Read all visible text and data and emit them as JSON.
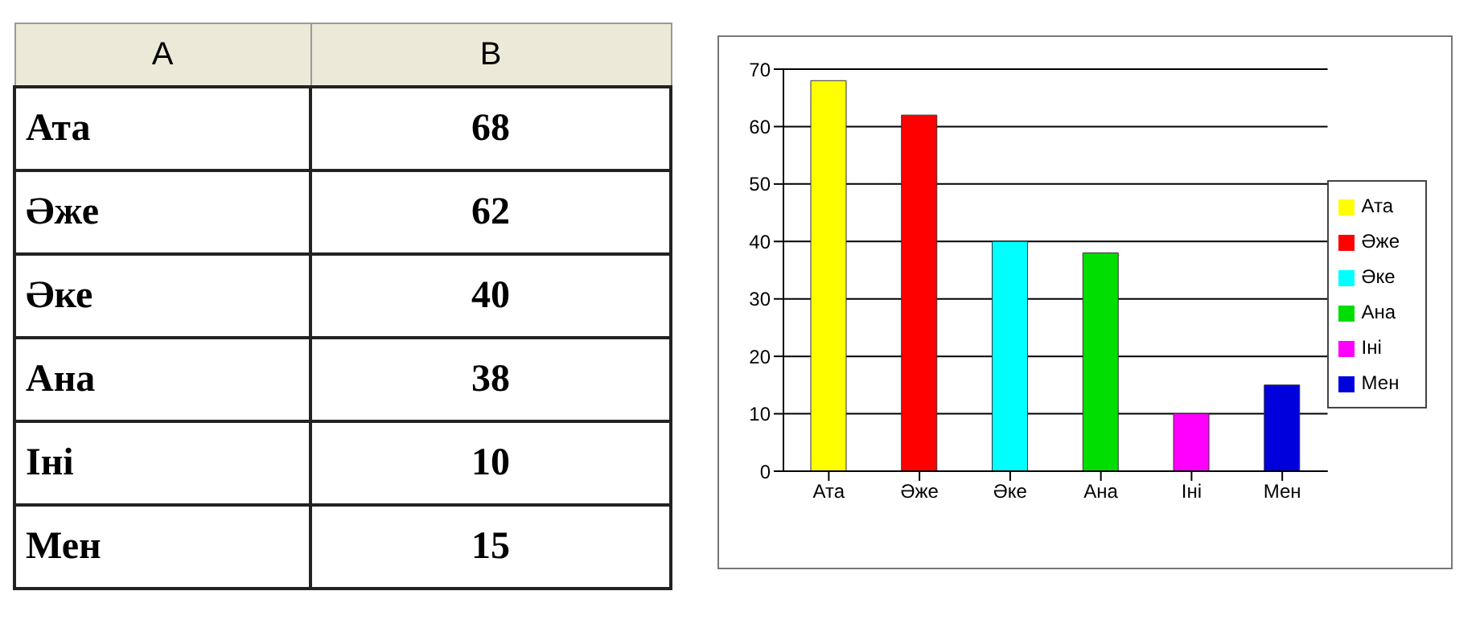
{
  "chart_data": [
    {
      "type": "other",
      "annotations": [
        "A",
        "B",
        "Ата",
        "68",
        "Әже",
        "62",
        "Әке",
        "40",
        "Ана",
        "38",
        "Іні",
        "10",
        "Мен",
        "15"
      ]
    },
    {
      "type": "bar",
      "categories": [
        "Ата",
        "Әже",
        "Әке",
        "Ана",
        "Іні",
        "Мен"
      ],
      "stacked": true,
      "series": [
        {
          "name": "Ата",
          "color": "#ffff00",
          "values": [
            68,
            null,
            null,
            null,
            null,
            null
          ]
        },
        {
          "name": "Әже",
          "color": "#ff0000",
          "values": [
            null,
            62,
            null,
            null,
            null,
            null
          ]
        },
        {
          "name": "Әке",
          "color": "#00ffff",
          "values": [
            null,
            null,
            40,
            null,
            null,
            null
          ]
        },
        {
          "name": "Ана",
          "color": "#00dd00",
          "values": [
            null,
            null,
            null,
            38,
            null,
            null
          ]
        },
        {
          "name": "Іні",
          "color": "#ff00ff",
          "values": [
            null,
            null,
            null,
            null,
            10,
            null
          ]
        },
        {
          "name": "Мен",
          "color": "#0000dd",
          "values": [
            null,
            null,
            null,
            null,
            null,
            15
          ]
        }
      ],
      "ylim": [
        0,
        70
      ],
      "yticks": [
        0,
        10,
        20,
        30,
        40,
        50,
        60,
        70
      ],
      "grid": "y",
      "legend": "right"
    }
  ]
}
